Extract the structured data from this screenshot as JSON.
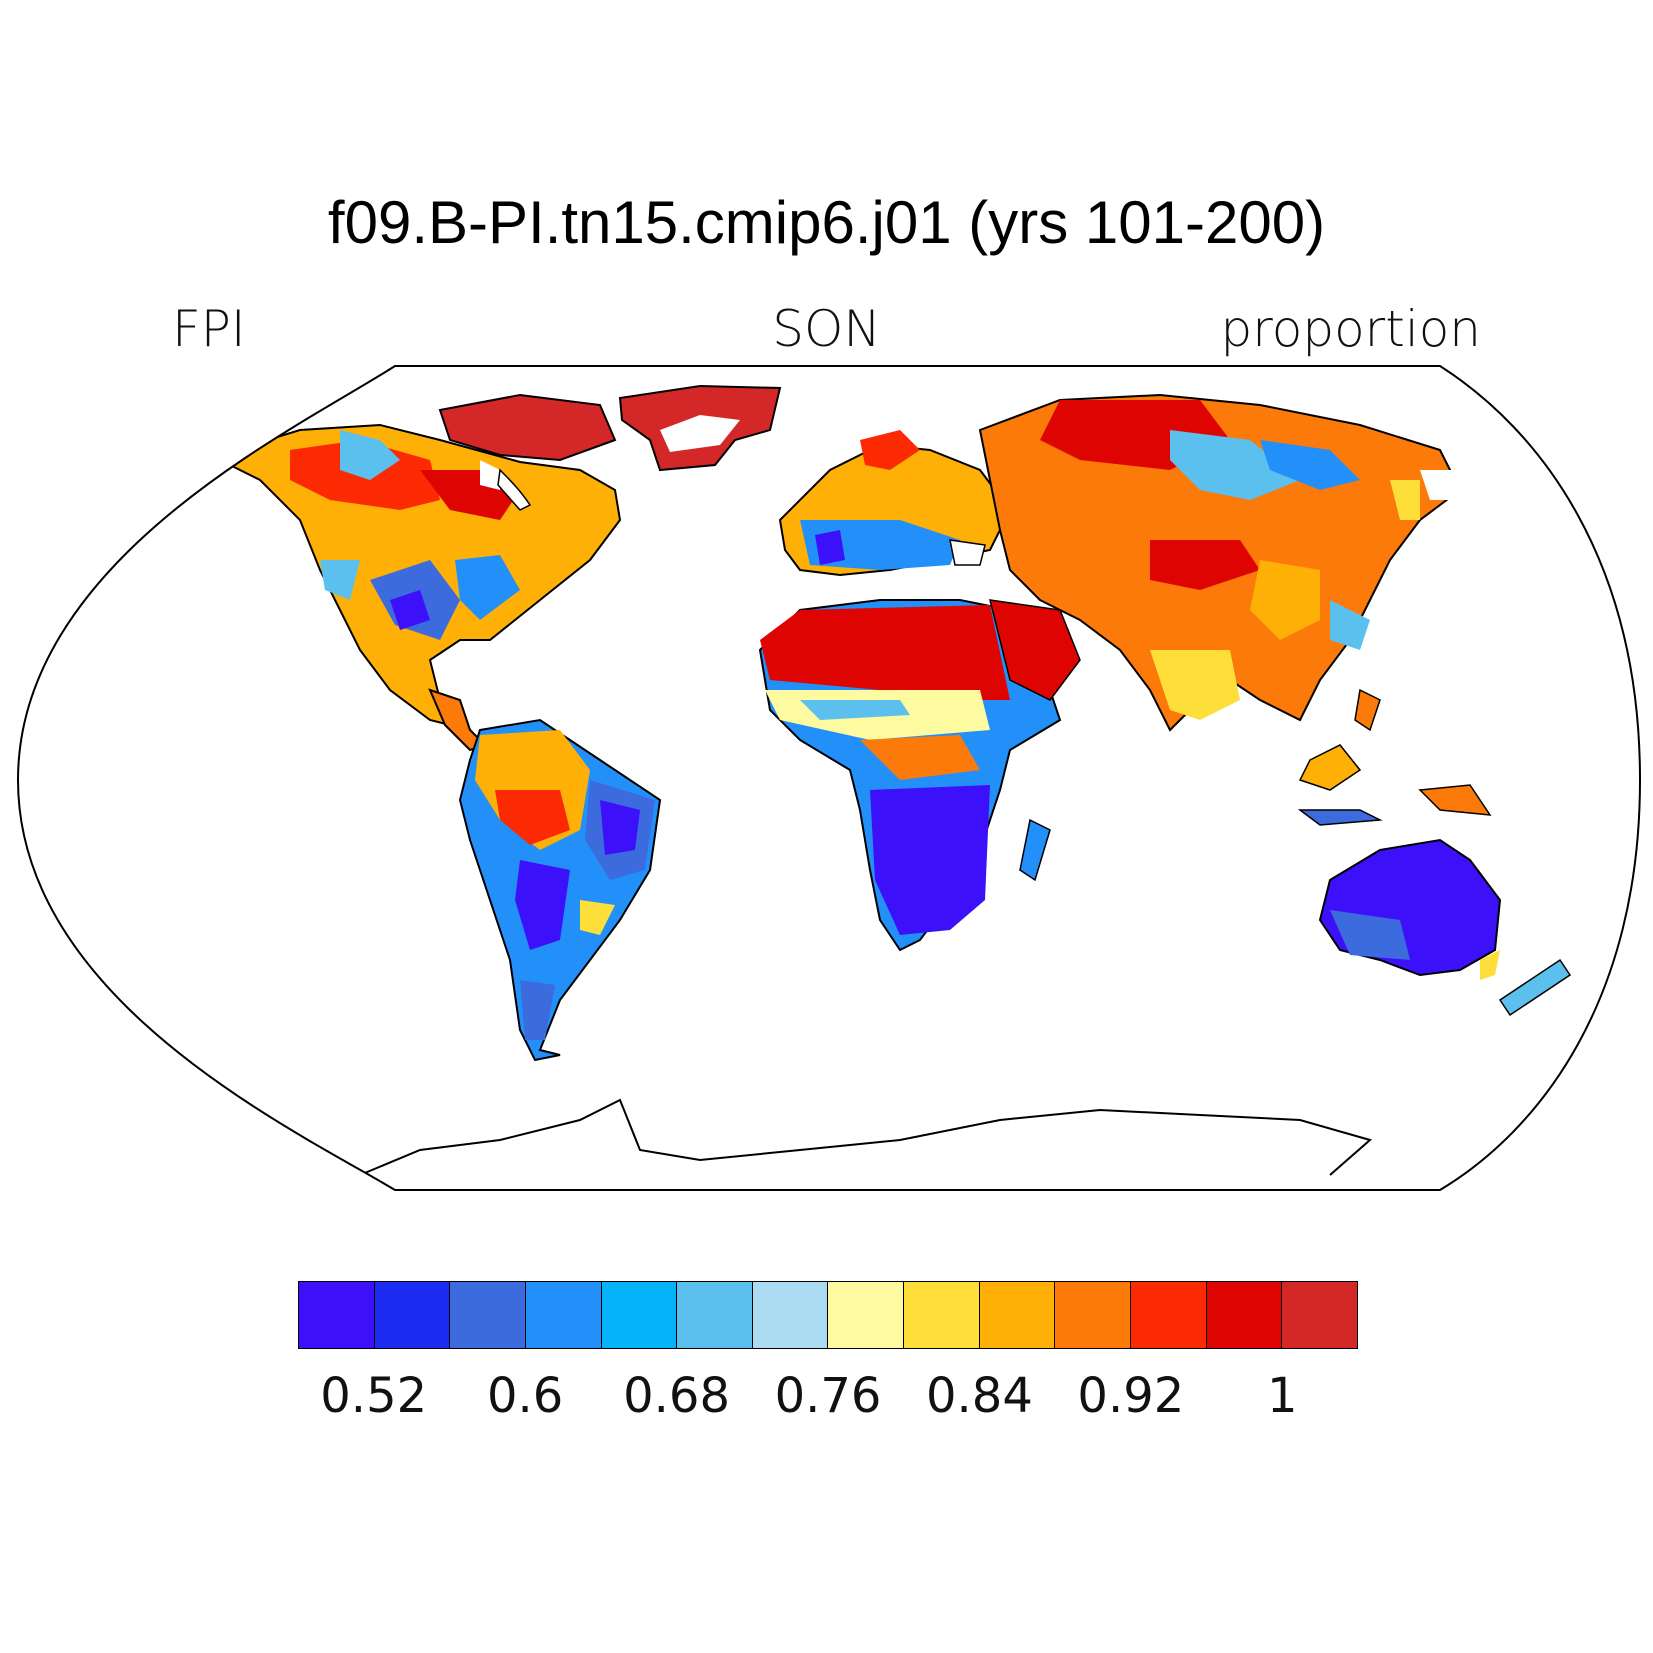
{
  "title": "f09.B-PI.tn15.cmip6.j01 (yrs 101-200)",
  "left_label": "FPI",
  "center_label": "SON",
  "right_label": "proportion",
  "colorbar": {
    "colors": [
      "#3d10fa",
      "#1c2cf0",
      "#3c6bde",
      "#2290f8",
      "#06b3f8",
      "#5cc0ee",
      "#acdcf2",
      "#fefaa0",
      "#fede38",
      "#feb006",
      "#fc7a0a",
      "#fc2a02",
      "#de0402",
      "#d42828"
    ],
    "tick_labels": [
      "0.52",
      "0.6",
      "0.68",
      "0.76",
      "0.84",
      "0.92",
      "1"
    ],
    "tick_values": [
      0.52,
      0.6,
      0.68,
      0.76,
      0.84,
      0.92,
      1.0
    ]
  },
  "map": {
    "projection": "Robinson",
    "variable": "FPI",
    "season": "SON",
    "units": "proportion"
  }
}
